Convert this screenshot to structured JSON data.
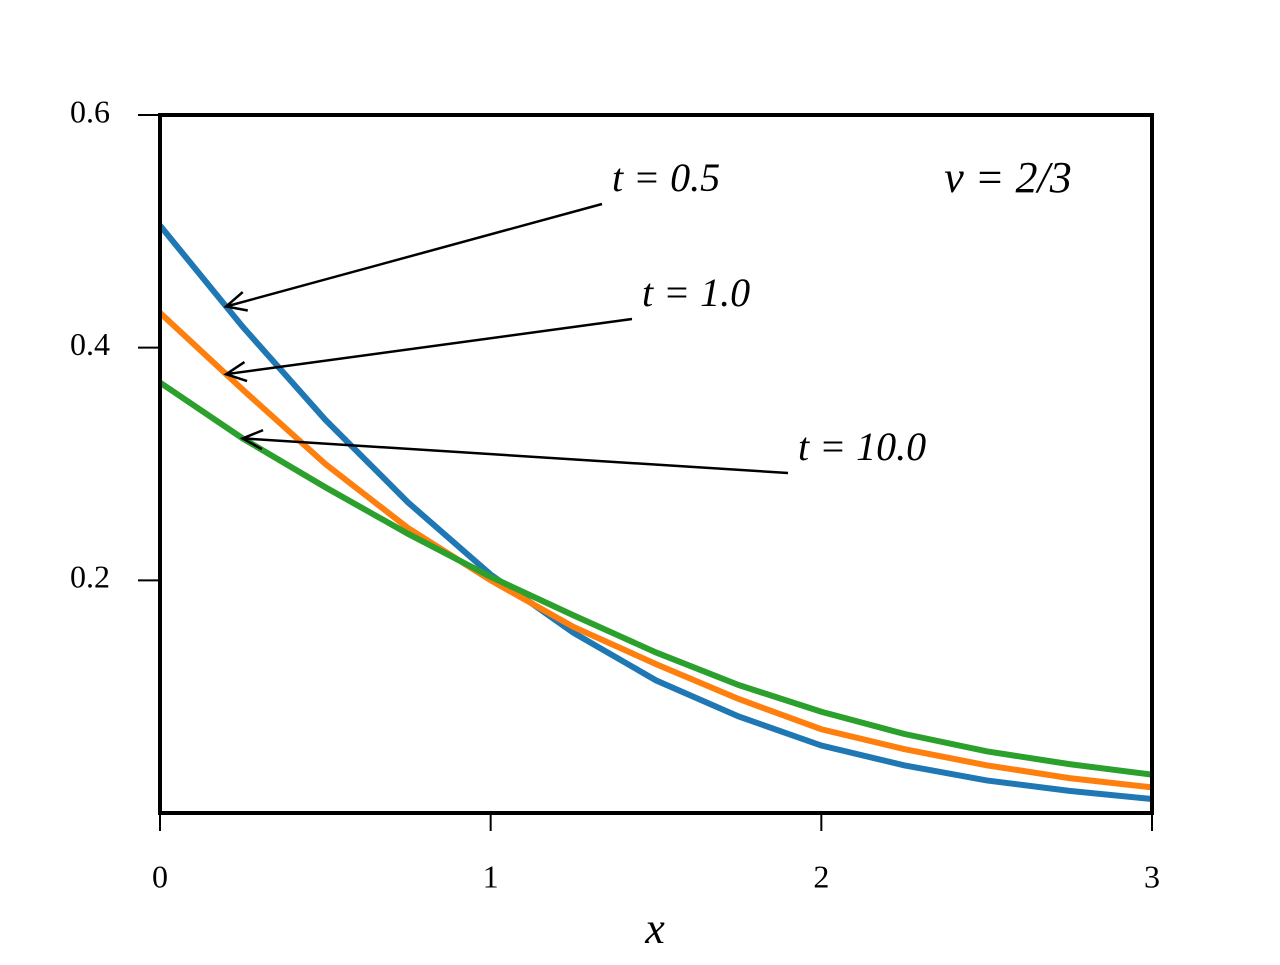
{
  "chart_data": {
    "type": "line",
    "x": [
      0,
      0.25,
      0.5,
      0.75,
      1,
      1.25,
      1.5,
      1.75,
      2,
      2.25,
      2.5,
      2.75,
      3
    ],
    "series": [
      {
        "name": "t = 0.5",
        "color": "#1f77b4",
        "values": [
          0.505,
          0.418,
          0.338,
          0.267,
          0.205,
          0.155,
          0.114,
          0.083,
          0.058,
          0.041,
          0.028,
          0.019,
          0.012
        ]
      },
      {
        "name": "t = 1.0",
        "color": "#ff7f0e",
        "values": [
          0.43,
          0.364,
          0.3,
          0.245,
          0.2,
          0.16,
          0.128,
          0.098,
          0.072,
          0.055,
          0.041,
          0.03,
          0.022
        ]
      },
      {
        "name": "t = 10.0",
        "color": "#2ca02c",
        "values": [
          0.37,
          0.322,
          0.28,
          0.24,
          0.203,
          0.17,
          0.138,
          0.11,
          0.087,
          0.068,
          0.053,
          0.042,
          0.033
        ]
      }
    ],
    "annotation": "ν = 2/3",
    "x_label": "x",
    "xlim": [
      0,
      3
    ],
    "ylim": [
      0,
      0.6
    ],
    "xticks": [
      0,
      1,
      2,
      3
    ],
    "yticks": [
      0.2,
      0.4,
      0.6
    ]
  }
}
